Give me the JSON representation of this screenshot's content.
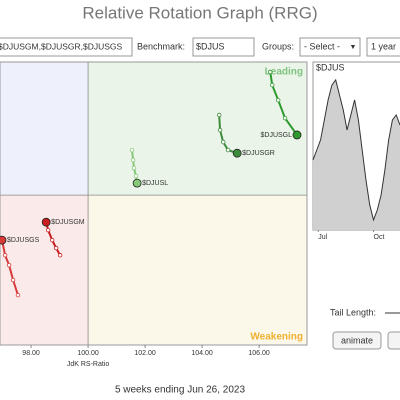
{
  "title": "Relative Rotation Graph (RRG)",
  "toolbar": {
    "symbols": "$DJUSGM,$DJUSGR,$DJUSGS",
    "benchmark_label": "Benchmark:",
    "benchmark": "$DJUS",
    "groups_label": "Groups:",
    "groups": "- Select -",
    "period": "1 year"
  },
  "chart_data": {
    "type": "rrg",
    "xlabel": "JdK RS-Ratio",
    "xlim": [
      96.91,
      107.68
    ],
    "ylim": [
      94.74,
      104.67
    ],
    "center": 100,
    "xticks": [
      {
        "value": 98,
        "label": "98.00"
      },
      {
        "value": 100,
        "label": "100.00"
      },
      {
        "value": 102,
        "label": "102.00"
      },
      {
        "value": 104,
        "label": "104.00"
      },
      {
        "value": 106,
        "label": "106.00"
      }
    ],
    "quadrants": {
      "leading": "Leading",
      "weakening": "Weakening"
    },
    "series": [
      {
        "name": "$DJUSGL",
        "color": "#2e9a2e",
        "x": [
          106.39,
          106.46,
          106.67,
          106.91,
          107.33
        ],
        "y": [
          104.32,
          103.86,
          103.33,
          102.7,
          102.11
        ]
      },
      {
        "name": "$DJUSGR",
        "color": "#3c8c3c",
        "x": [
          104.6,
          104.63,
          104.74,
          104.91,
          105.23
        ],
        "y": [
          102.81,
          102.28,
          101.86,
          101.58,
          101.47
        ]
      },
      {
        "name": "$DJUSL",
        "color": "#86c878",
        "x": [
          101.54,
          101.58,
          101.61,
          101.68,
          101.72
        ],
        "y": [
          101.58,
          101.23,
          100.95,
          100.67,
          100.42
        ]
      },
      {
        "name": "$DJUSGM",
        "color": "#c81e1e",
        "x": [
          99.02,
          98.88,
          98.74,
          98.6,
          98.53
        ],
        "y": [
          97.89,
          98.14,
          98.42,
          98.77,
          99.05
        ]
      },
      {
        "name": "$DJUSGS",
        "color": "#d83a3a",
        "x": [
          97.54,
          97.37,
          97.23,
          97.09,
          96.98
        ],
        "y": [
          96.49,
          97.02,
          97.54,
          97.89,
          98.42
        ]
      }
    ],
    "footer": "5 weeks ending Jun 26, 2023"
  },
  "mini_chart": {
    "title": "$DJUS",
    "xlim": [
      0,
      23
    ],
    "ylim": [
      0,
      100
    ],
    "xticks": [
      {
        "value": 1.4,
        "label": "Jul"
      },
      {
        "value": 16,
        "label": "Oct"
      }
    ],
    "values": [
      43.8,
      50,
      56.3,
      68.8,
      81.3,
      90.6,
      93.8,
      84.4,
      75,
      62.5,
      71.9,
      81.3,
      68.8,
      50,
      31.3,
      15.6,
      6.3,
      12.5,
      21.9,
      37.5,
      56.3,
      68.8,
      71.9,
      65.6
    ]
  },
  "controls": {
    "tail_length_label": "Tail Length:",
    "animate": "animate"
  }
}
